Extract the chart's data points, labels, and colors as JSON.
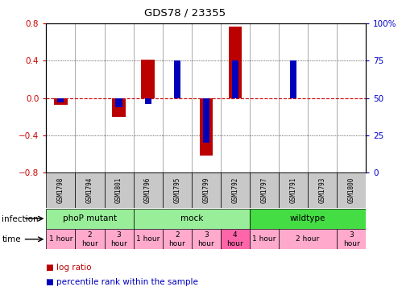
{
  "title": "GDS78 / 23355",
  "samples": [
    "GSM1798",
    "GSM1794",
    "GSM1801",
    "GSM1796",
    "GSM1795",
    "GSM1799",
    "GSM1792",
    "GSM1797",
    "GSM1791",
    "GSM1793",
    "GSM1800"
  ],
  "log_ratio": [
    -0.07,
    0.0,
    -0.2,
    0.41,
    0.0,
    -0.62,
    0.77,
    0.0,
    0.0,
    0.0,
    0.0
  ],
  "percentile": [
    47,
    50,
    44,
    46,
    75,
    20,
    75,
    50,
    75,
    50,
    50
  ],
  "ylim_left": [
    -0.8,
    0.8
  ],
  "ylim_right": [
    0,
    100
  ],
  "yticks_left": [
    -0.8,
    -0.4,
    0.0,
    0.4,
    0.8
  ],
  "yticks_right": [
    0,
    25,
    50,
    75,
    100
  ],
  "bar_color_red": "#BB0000",
  "bar_color_blue": "#0000BB",
  "zero_line_color": "#CC0000",
  "label_color_left": "#CC0000",
  "label_color_right": "#0000CC",
  "sample_bg": "#C8C8C8",
  "infection_groups": [
    {
      "label": "phoP mutant",
      "start": 0,
      "end": 3,
      "color": "#99EE99"
    },
    {
      "label": "mock",
      "start": 3,
      "end": 7,
      "color": "#99EE99"
    },
    {
      "label": "wildtype",
      "start": 7,
      "end": 11,
      "color": "#44DD44"
    }
  ],
  "time_boxes": [
    {
      "label": "1 hour",
      "start": 0,
      "end": 1,
      "color": "#FFAACC"
    },
    {
      "label": "2\nhour",
      "start": 1,
      "end": 2,
      "color": "#FFAACC"
    },
    {
      "label": "3\nhour",
      "start": 2,
      "end": 3,
      "color": "#FFAACC"
    },
    {
      "label": "1 hour",
      "start": 3,
      "end": 4,
      "color": "#FFAACC"
    },
    {
      "label": "2\nhour",
      "start": 4,
      "end": 5,
      "color": "#FFAACC"
    },
    {
      "label": "3\nhour",
      "start": 5,
      "end": 6,
      "color": "#FFAACC"
    },
    {
      "label": "4\nhour",
      "start": 6,
      "end": 7,
      "color": "#FF66AA"
    },
    {
      "label": "1 hour",
      "start": 7,
      "end": 8,
      "color": "#FFAACC"
    },
    {
      "label": "2 hour",
      "start": 8,
      "end": 10,
      "color": "#FFAACC"
    },
    {
      "label": "3\nhour",
      "start": 10,
      "end": 11,
      "color": "#FFAACC"
    }
  ]
}
